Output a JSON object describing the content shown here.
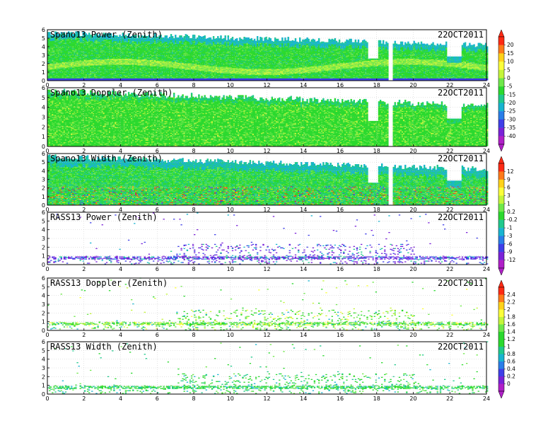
{
  "chart_data": [
    {
      "type": "heatmap",
      "title": "Spano13 Power (Zenith)",
      "date": "22OCT2011",
      "xlim": [
        0,
        24
      ],
      "ylim": [
        0,
        6
      ],
      "xticks": [
        "0",
        "2",
        "4",
        "6",
        "8",
        "10",
        "12",
        "14",
        "16",
        "18",
        "20",
        "22",
        "24"
      ],
      "yticks": [
        "0",
        "1",
        "2",
        "3",
        "4",
        "5",
        "6"
      ],
      "colorbar": "cb1",
      "kind": "power"
    },
    {
      "type": "heatmap",
      "title": "Spano13 Doppler (Zenith)",
      "date": "22OCT2011",
      "xlim": [
        0,
        24
      ],
      "ylim": [
        0,
        6
      ],
      "xticks": [
        "0",
        "2",
        "4",
        "6",
        "8",
        "10",
        "12",
        "14",
        "16",
        "18",
        "20",
        "22",
        "24"
      ],
      "yticks": [
        "0",
        "1",
        "2",
        "3",
        "4",
        "5",
        "6"
      ],
      "colorbar": "cb1",
      "kind": "doppler"
    },
    {
      "type": "heatmap",
      "title": "Spano13 Width (Zenith)",
      "date": "22OCT2011",
      "xlim": [
        0,
        24
      ],
      "ylim": [
        0,
        6
      ],
      "xticks": [
        "0",
        "2",
        "4",
        "6",
        "8",
        "10",
        "12",
        "14",
        "16",
        "18",
        "20",
        "22",
        "24"
      ],
      "yticks": [
        "0",
        "1",
        "2",
        "3",
        "4",
        "5",
        "6"
      ],
      "colorbar": "cb2",
      "kind": "width"
    },
    {
      "type": "heatmap",
      "title": "RASS13 Power (Zenith)",
      "date": "22OCT2011",
      "xlim": [
        0,
        24
      ],
      "ylim": [
        0,
        6
      ],
      "xticks": [
        "0",
        "2",
        "4",
        "6",
        "8",
        "10",
        "12",
        "14",
        "16",
        "18",
        "20",
        "22",
        "24"
      ],
      "yticks": [
        "0",
        "1",
        "2",
        "3",
        "4",
        "5",
        "6"
      ],
      "colorbar": "cb2",
      "kind": "rpower"
    },
    {
      "type": "heatmap",
      "title": "RASS13 Doppler (Zenith)",
      "date": "22OCT2011",
      "xlim": [
        0,
        24
      ],
      "ylim": [
        0,
        6
      ],
      "xticks": [
        "0",
        "2",
        "4",
        "6",
        "8",
        "10",
        "12",
        "14",
        "16",
        "18",
        "20",
        "22",
        "24"
      ],
      "yticks": [
        "0",
        "1",
        "2",
        "3",
        "4",
        "5",
        "6"
      ],
      "colorbar": "cb3",
      "kind": "rdoppler"
    },
    {
      "type": "heatmap",
      "title": "RASS13 Width (Zenith)",
      "date": "22OCT2011",
      "xlim": [
        0,
        24
      ],
      "ylim": [
        0,
        6
      ],
      "xticks": [
        "0",
        "2",
        "4",
        "6",
        "8",
        "10",
        "12",
        "14",
        "16",
        "18",
        "20",
        "22",
        "24"
      ],
      "yticks": [
        "0",
        "1",
        "2",
        "3",
        "4",
        "5",
        "6"
      ],
      "colorbar": "cb3",
      "kind": "rwidth"
    }
  ],
  "colorbars": {
    "cb1": {
      "labels": [
        "20",
        "15",
        "10",
        "5",
        "0",
        "-5",
        "-15",
        "-20",
        "-25",
        "-30",
        "-35",
        "-40"
      ]
    },
    "cb2": {
      "labels": [
        "12",
        "9",
        "6",
        "3",
        "1",
        "0.2",
        "-0.2",
        "-1",
        "-3",
        "-6",
        "-9",
        "-12"
      ]
    },
    "cb3": {
      "labels": [
        "2.4",
        "2.2",
        "2",
        "1.8",
        "1.6",
        "1.4",
        "1.2",
        "1",
        "0.8",
        "0.6",
        "0.4",
        "0.2",
        "0"
      ]
    }
  },
  "colors": {
    "palette": [
      "#ff2a14",
      "#ff7a1a",
      "#ffd21a",
      "#fbff3a",
      "#c4f53a",
      "#6fe84a",
      "#2bd92e",
      "#20c98c",
      "#18b4d0",
      "#2a7ee8",
      "#3f3fe8",
      "#7a22d8",
      "#b01fc8"
    ]
  }
}
